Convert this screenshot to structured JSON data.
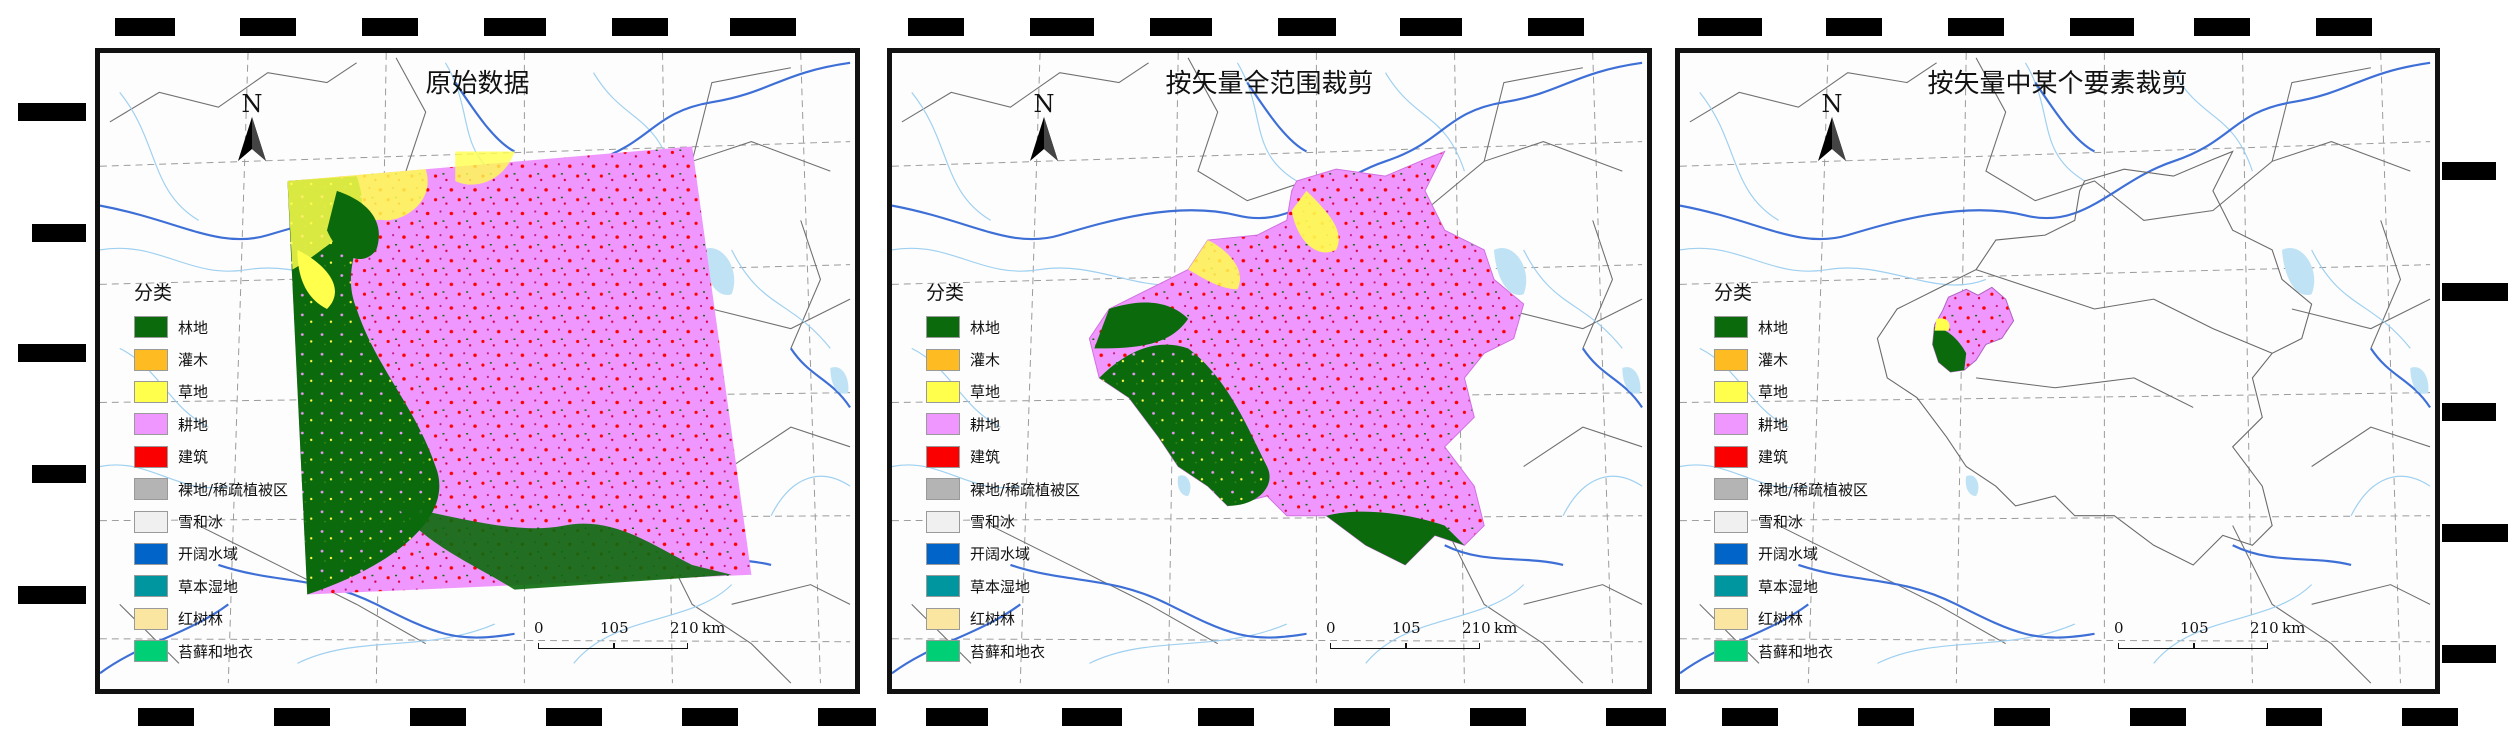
{
  "panels": [
    {
      "title": "原始数据"
    },
    {
      "title": "按矢量全范围裁剪"
    },
    {
      "title": "按矢量中某个要素裁剪"
    }
  ],
  "north": {
    "label": "N"
  },
  "legend": {
    "title": "分类",
    "items": [
      {
        "label": "林地",
        "color": "#0b6a0b"
      },
      {
        "label": "灌木",
        "color": "#ffbb22"
      },
      {
        "label": "草地",
        "color": "#ffff4c"
      },
      {
        "label": "耕地",
        "color": "#f096ff"
      },
      {
        "label": "建筑",
        "color": "#fa0000"
      },
      {
        "label": "裸地/稀疏植被区",
        "color": "#b4b4b4"
      },
      {
        "label": "雪和冰",
        "color": "#f0f0f0"
      },
      {
        "label": "开阔水域",
        "color": "#0064c8"
      },
      {
        "label": "草本湿地",
        "color": "#0096a0"
      },
      {
        "label": "红树林",
        "color": "#fae6a0"
      },
      {
        "label": "苔藓和地衣",
        "color": "#00cf75"
      }
    ]
  },
  "scalebar": {
    "labels": [
      "0",
      "105",
      "210"
    ],
    "unit": "km"
  },
  "colors": {
    "river": "#3d6fd6",
    "stream": "#9fd0f0",
    "boundary": "#6a6a6a",
    "frame": "#111111"
  }
}
